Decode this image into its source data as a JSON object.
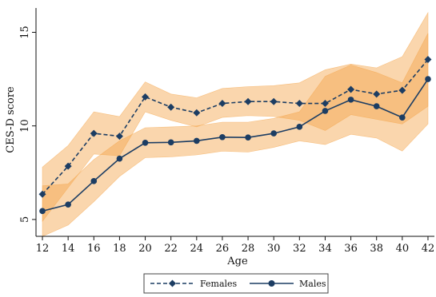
{
  "chart_data": {
    "type": "line",
    "xlabel": "Age",
    "ylabel": "CES-D score",
    "x": [
      12,
      14,
      16,
      18,
      20,
      22,
      24,
      26,
      28,
      30,
      32,
      34,
      36,
      38,
      40,
      42
    ],
    "xticks": [
      12,
      14,
      16,
      18,
      20,
      22,
      24,
      26,
      28,
      30,
      32,
      34,
      36,
      38,
      40,
      42
    ],
    "yticks": [
      5,
      10,
      15
    ],
    "xlim": [
      11.5,
      42.5
    ],
    "ylim": [
      4.1,
      16.3
    ],
    "grid": false,
    "legend_position": "bottom-center",
    "band_color": "#f5a54a",
    "series": [
      {
        "name": "Females",
        "style": "dashed",
        "marker": "diamond",
        "color": "#1c3d63",
        "values": [
          6.35,
          7.85,
          9.6,
          9.45,
          11.55,
          11.0,
          10.7,
          11.2,
          11.3,
          11.3,
          11.2,
          11.2,
          11.95,
          11.7,
          11.9,
          13.55
        ],
        "ci_lower": [
          4.9,
          6.7,
          8.5,
          8.4,
          10.75,
          10.3,
          9.95,
          10.45,
          10.55,
          10.5,
          10.3,
          9.75,
          10.6,
          10.35,
          10.1,
          11.05
        ],
        "ci_upper": [
          7.8,
          8.95,
          10.75,
          10.5,
          12.35,
          11.7,
          11.5,
          12.0,
          12.1,
          12.15,
          12.3,
          13.0,
          13.3,
          13.1,
          13.7,
          16.05
        ]
      },
      {
        "name": "Males",
        "style": "solid",
        "marker": "circle",
        "color": "#1c3d63",
        "values": [
          5.45,
          5.8,
          7.05,
          8.25,
          9.1,
          9.12,
          9.2,
          9.4,
          9.38,
          9.6,
          9.95,
          10.8,
          11.4,
          11.05,
          10.45,
          12.5
        ],
        "ci_lower": [
          4.1,
          4.7,
          5.95,
          7.3,
          8.3,
          8.35,
          8.45,
          8.65,
          8.6,
          8.85,
          9.2,
          9.0,
          9.55,
          9.35,
          8.65,
          10.1
        ],
        "ci_upper": [
          6.8,
          6.9,
          8.2,
          9.2,
          9.9,
          9.95,
          10.0,
          10.2,
          10.2,
          10.4,
          10.75,
          12.65,
          13.25,
          12.85,
          12.3,
          14.95
        ]
      }
    ]
  }
}
